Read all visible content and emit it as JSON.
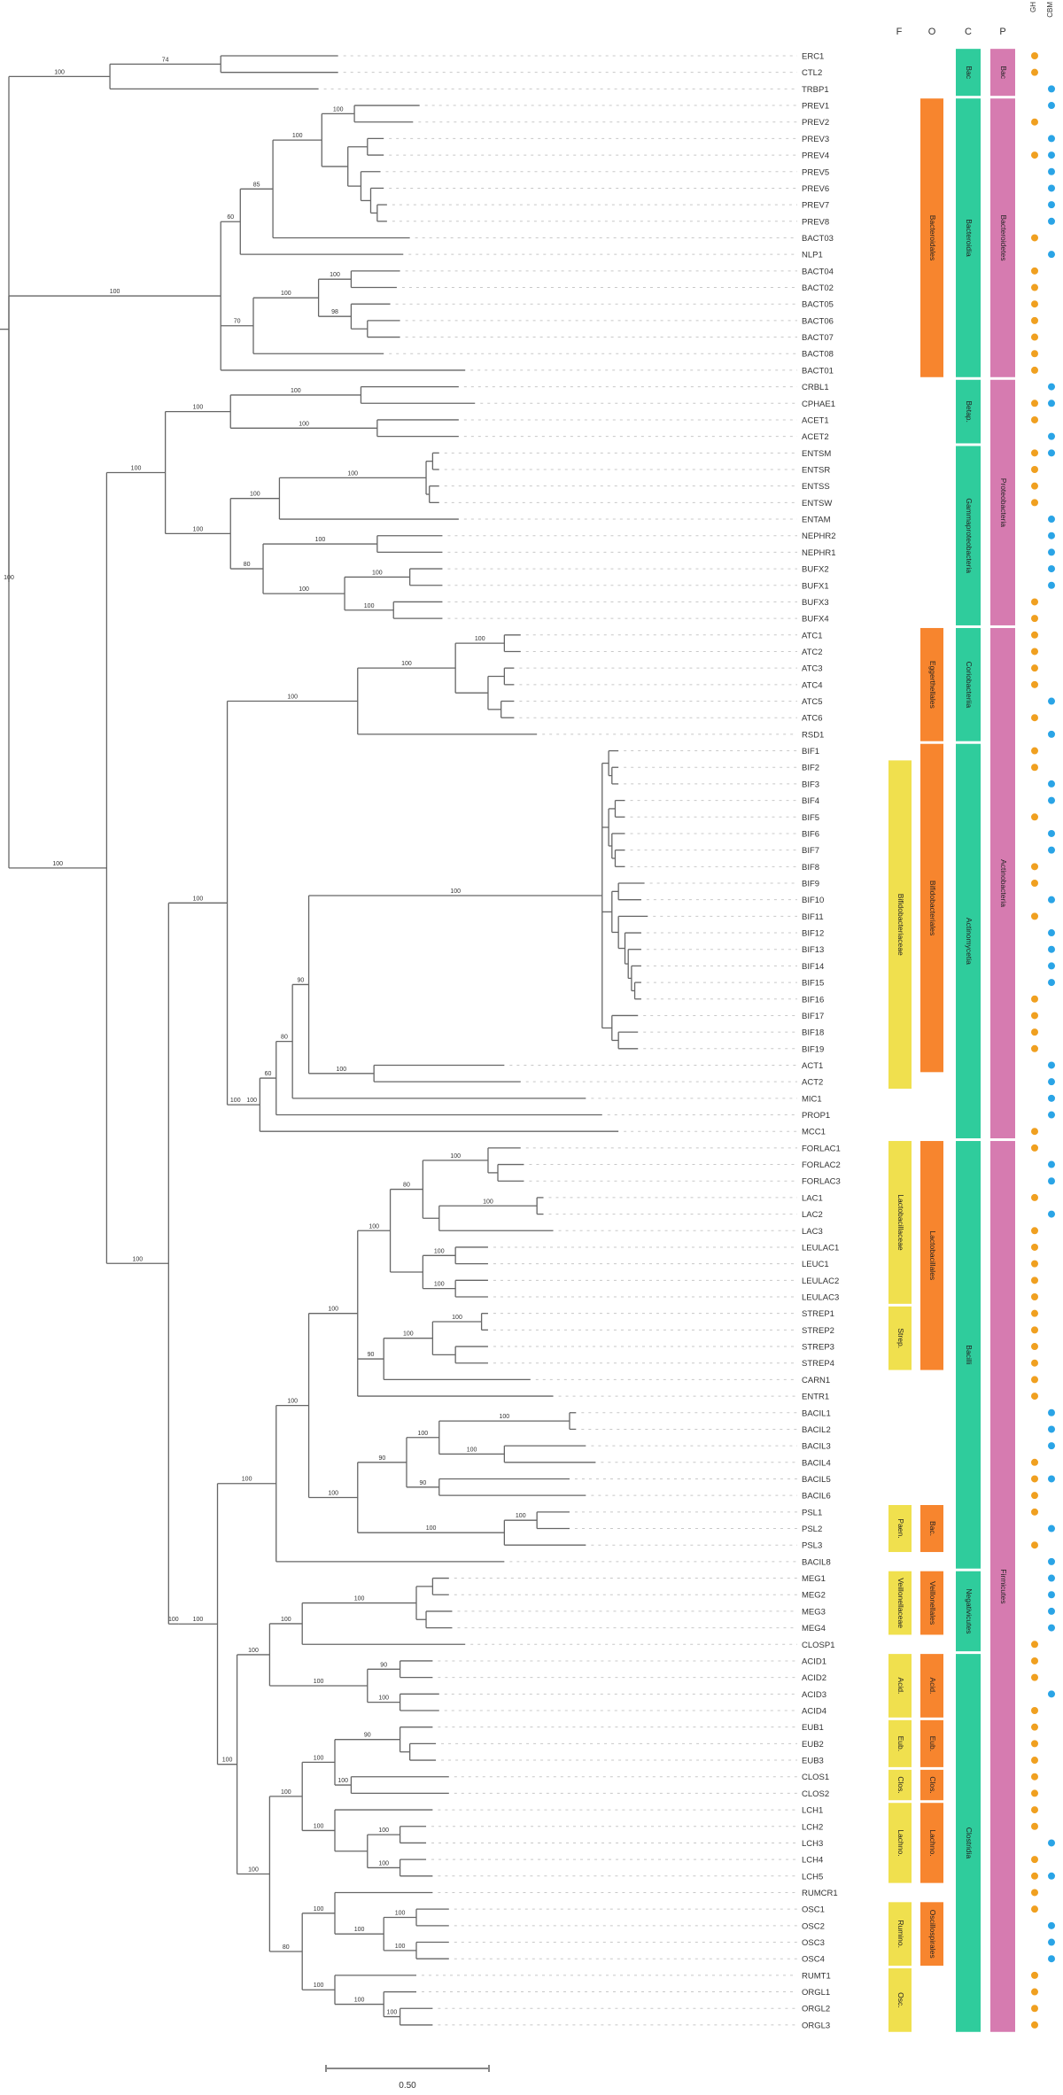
{
  "newick": "((((ERC1:0.36,CTL2:0.36)74:0.34,TRBP1:0.64)100:0.31,((((((PREV1:0.2,PREV2:0.18)100:0.1,((PREV3:0.05,PREV4:0.05):0.06,(PREV5:0.06,(PREV6:0.04,(PREV7:0.03,PREV8:0.03):0.02):0.03):0.04):0.08)100:0.15,BACT03:0.42)85:0.1,NLP1:0.5)60:0.06,(((BACT04:0.15,BACT02:0.14)100:0.1,(BACT05:0.12,(BACT06:0.1,BACT07:0.1):0.05)98:0.1)100:0.2,BACT08:0.4)70:0.1,BACT01:0.75)100:0.65,((((CRBL1:0.3,CPHAE1:0.35)100:0.4,(ACET1:0.25,ACET2:0.25)100:0.45)100:0.2,((((ENTSM:0.02,ENTSR:0.02):0.02,(ENTSS:0.03,ENTSW:0.03):0.01)100:0.45,ENTAM:0.55)100:0.15,((NEPHR2:0.2,NEPHR1:0.2)100:0.35,((BUFX2:0.1,BUFX1:0.1)100:0.2,(BUFX3:0.15,BUFX4:0.15)100:0.15)100:0.25)80:0.1)100:0.2)100:0.18,(((((ATC1:0.05,ATC2:0.05)100:0.15,((ATC3:0.03,ATC4:0.03):0.05,(ATC5:0.04,ATC6:0.04):0.04):0.1)100:0.3,RSD1:0.55)100:0.4,(((((((BIF1:0.03,(BIF2:0.02,BIF3:0.02):0.01):0.02,((BIF4:0.03,BIF5:0.03):0.02,(BIF6:0.04,(BIF7:0.03,BIF8:0.03):0.01):0.01):0.02,((BIF9:0.08,BIF10:0.07):0.02,(BIF11:0.09,(BIF12:0.05,(BIF13:0.04,(BIF14:0.03,(BIF15:0.02,BIF16:0.02):0.01):0.01):0.01):0.02):0.02):0.03,(BIF17:0.08,(BIF18:0.06,BIF19:0.06):0.02):0.03)100:0.9,(ACT1:0.4,ACT2:0.45)100:0.2)90:0.05,MIC1:0.9)80:0.05,PROP1:1.0)60:0.05,MCC1:1.1)100:0.05)100:0.05)100:0.18,((((((((FORLAC1:0.1,(FORLAC2:0.08,FORLAC3:0.08):0.03)100:0.2,((LAC1:0.02,LAC2:0.02)100:0.3,LAC3:0.35):0.05)80:0.1,((LEULAC1:0.1,LEUC1:0.1)100:0.1,(LEULAC2:0.1,LEULAC3:0.1)100:0.1):0.1)100:0.1,(((STREP1:0.02,STREP2:0.02)100:0.15,(STREP3:0.1,STREP4:0.1):0.07)100:0.15,CARN1:0.45)90:0.08,ENTR1:0.6)100:0.15,((((BACIL1:0.02,BACIL2:0.02)100:0.4,(BACIL3:0.25,BACIL4:0.28)100:0.2)100:0.1,(BACIL5:0.4,BACIL6:0.45)90:0.1)90:0.15,((PSL1:0.1,PSL2:0.1)100:0.1,PSL3:0.25)100:0.45)100:0.15)100:0.1,BACIL8:0.7)100:0.18,(((((MEG1:0.05,MEG2:0.05):0.05,(MEG3:0.08,MEG4:0.08):0.03)100:0.35,CLOSP1:0.5)100:0.1,((ACID1:0.1,ACID2:0.1)90:0.1,(ACID3:0.12,ACID4:0.12)100:0.1)100:0.3)100:0.1,((((EUB1:0.1,(EUB2:0.08,EUB3:0.08):0.03)90:0.2,(CLOS1:0.3,CLOS2:0.3)100:0.05)100:0.1,(LCH1:0.3,((LCH2:0.08,LCH3:0.08)100:0.1,(LCH4:0.08,LCH5:0.1)100:0.1):0.1)100:0.1)100:0.1,((RUMCR1:0.3,((OSC1:0.1,OSC2:0.1)100:0.1,(OSC3:0.1,OSC4:0.1)100:0.1)100:0.15)100:0.1,(RUMT1:0.25,(ORGL1:0.1,(ORGL2:0.1,ORGL3:0.1)100:0.05)100:0.15)100:0.1)80:0.1)100:0.1)100:0.06)100:0.12)100:0.03)100:0.19)100:0.3)100;",
  "scale_bar": {
    "value": 0.5,
    "label": "0.50"
  },
  "headers": {
    "family": "F",
    "order": "O",
    "class": "C",
    "phylum": "P",
    "marker_a": "GH",
    "marker_b": "CBM"
  },
  "colors": {
    "phylum": "#d67bb0",
    "class": "#2fcc9c",
    "order": "#f7852e",
    "family": "#f0e04e",
    "marker_a": "#f0a020",
    "marker_b": "#2aa4e6",
    "branch": "#666666"
  },
  "annotations": {
    "phylum": [
      {
        "label": "Bac",
        "from": "ERC1",
        "to": "TRBP1"
      },
      {
        "label": "Bacteroidetes",
        "from": "PREV1",
        "to": "BACT01"
      },
      {
        "label": "Proteobacteria",
        "from": "CRBL1",
        "to": "BUFX4"
      },
      {
        "label": "Actinobacteria",
        "from": "ATC1",
        "to": "MCC1"
      },
      {
        "label": "Firmicutes",
        "from": "FORLAC1",
        "to": "ORGL3"
      }
    ],
    "class": [
      {
        "label": "Bac",
        "from": "ERC1",
        "to": "TRBP1"
      },
      {
        "label": "Bacteroidia",
        "from": "PREV1",
        "to": "BACT01"
      },
      {
        "label": "Betap.",
        "from": "CRBL1",
        "to": "ACET2"
      },
      {
        "label": "Gammaproteobacteria",
        "from": "ENTSM",
        "to": "BUFX4"
      },
      {
        "label": "Coriobacteriia",
        "from": "ATC1",
        "to": "RSD1"
      },
      {
        "label": "Actinomycetia",
        "from": "BIF1",
        "to": "MCC1"
      },
      {
        "label": "Bacilli",
        "from": "FORLAC1",
        "to": "BACIL8"
      },
      {
        "label": "Negativicutes",
        "from": "MEG1",
        "to": "CLOSP1"
      },
      {
        "label": "Clostridia",
        "from": "ACID1",
        "to": "ORGL3"
      }
    ],
    "order": [
      {
        "label": "Bacteroidales",
        "from": "PREV1",
        "to": "BACT01"
      },
      {
        "label": "Eggerthellales",
        "from": "ATC1",
        "to": "RSD1"
      },
      {
        "label": "Bifidobacteriales",
        "from": "BIF1",
        "to": "ACT1"
      },
      {
        "label": "Lactobacillales",
        "from": "FORLAC1",
        "to": "STREP4"
      },
      {
        "label": "Bac.",
        "from": "PSL1",
        "to": "PSL3"
      },
      {
        "label": "Veillonellales",
        "from": "MEG1",
        "to": "MEG4"
      },
      {
        "label": "Acid.",
        "from": "ACID1",
        "to": "ACID4"
      },
      {
        "label": "Eub.",
        "from": "EUB1",
        "to": "EUB3"
      },
      {
        "label": "Clos.",
        "from": "CLOS1",
        "to": "CLOS2"
      },
      {
        "label": "Lachno.",
        "from": "LCH1",
        "to": "LCH5"
      },
      {
        "label": "Oscillospirales",
        "from": "OSC1",
        "to": "OSC4"
      }
    ],
    "family": [
      {
        "label": "Bifidobacteriaceae",
        "from": "BIF2",
        "to": "ACT2"
      },
      {
        "label": "Lactobacillaceae",
        "from": "FORLAC1",
        "to": "LEULAC3"
      },
      {
        "label": "Strep.",
        "from": "STREP1",
        "to": "STREP4"
      },
      {
        "label": "Paen.",
        "from": "PSL1",
        "to": "PSL3"
      },
      {
        "label": "Veillonellaceae",
        "from": "MEG1",
        "to": "MEG4"
      },
      {
        "label": "Acid.",
        "from": "ACID1",
        "to": "ACID4"
      },
      {
        "label": "Eub.",
        "from": "EUB1",
        "to": "EUB3"
      },
      {
        "label": "Clos.",
        "from": "CLOS1",
        "to": "CLOS2"
      },
      {
        "label": "Lachno.",
        "from": "LCH1",
        "to": "LCH5"
      },
      {
        "label": "Rumino.",
        "from": "OSC1",
        "to": "OSC4"
      },
      {
        "label": "Osc.",
        "from": "RUMT1",
        "to": "ORGL3"
      }
    ]
  },
  "markers": [
    "o",
    "o",
    "b",
    "b",
    "o",
    "b",
    "ob",
    "b",
    "b",
    "b",
    "b",
    "o",
    "b",
    "o",
    "o",
    "o",
    "o",
    "o",
    "o",
    "o",
    "b",
    "ob",
    "o",
    "b",
    "ob",
    "o",
    "o",
    "o",
    "b",
    "b",
    "b",
    "b",
    "b",
    "o",
    "o",
    "o",
    "o",
    "o",
    "o",
    "b",
    "o",
    "b",
    "o",
    "o",
    "b",
    "b",
    "o",
    "b",
    "b",
    "o",
    "o",
    "b",
    "o",
    "b",
    "b",
    "b",
    "b",
    "o",
    "o",
    "o",
    "o",
    "b",
    "b",
    "b",
    "b",
    "o",
    "o",
    "b",
    "b",
    "o",
    "b",
    "o",
    "o",
    "o",
    "o",
    "o",
    "o",
    "o",
    "o",
    "o",
    "o",
    "o",
    "b",
    "b",
    "b",
    "o",
    "ob",
    "o",
    "o",
    "b",
    "o",
    "b",
    "b",
    "b",
    "b",
    "b",
    "o",
    "o",
    "o",
    "b",
    "o",
    "o",
    "o",
    "o",
    "o",
    "o",
    "o",
    "o",
    "b",
    "o",
    "ob",
    "o",
    "o",
    "b",
    "b",
    "b",
    "o",
    "o",
    "o",
    "o"
  ]
}
